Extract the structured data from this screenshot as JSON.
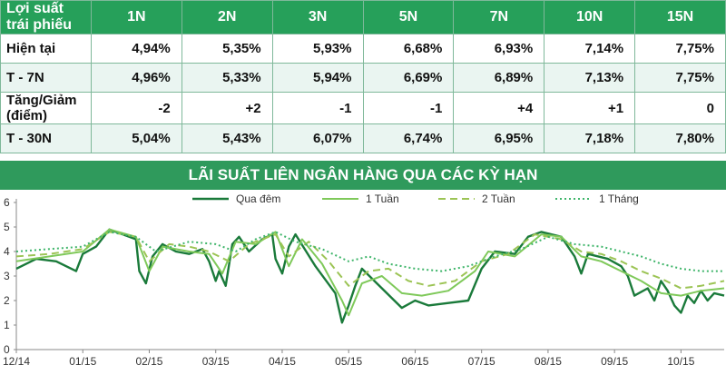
{
  "table": {
    "headers": [
      "Lợi suất trái phiếu",
      "1N",
      "2N",
      "3N",
      "5N",
      "7N",
      "10N",
      "15N"
    ],
    "rows": [
      {
        "label": "Hiện tại",
        "values": [
          "4,94%",
          "5,35%",
          "5,93%",
          "6,68%",
          "6,93%",
          "7,14%",
          "7,75%"
        ]
      },
      {
        "label": "T - 7N",
        "values": [
          "4,96%",
          "5,33%",
          "5,94%",
          "6,69%",
          "6,89%",
          "7,13%",
          "7,75%"
        ]
      },
      {
        "label": "Tăng/Giảm (điểm)",
        "values": [
          "-2",
          "+2",
          "-1",
          "-1",
          "+4",
          "+1",
          "0"
        ]
      },
      {
        "label": "T - 30N",
        "values": [
          "5,04%",
          "5,43%",
          "6,07%",
          "6,74%",
          "6,95%",
          "7,18%",
          "7,80%"
        ]
      }
    ]
  },
  "chart_data": {
    "type": "line",
    "title": "LÃI SUẤT LIÊN NGÂN HÀNG QUA CÁC KỲ HẠN",
    "ylim": [
      0,
      6
    ],
    "yticks": [
      0,
      1,
      2,
      3,
      4,
      5,
      6
    ],
    "xlim": [
      0,
      10.65
    ],
    "xticks": [
      0,
      1,
      2,
      3,
      4,
      5,
      6,
      7,
      8,
      9,
      10
    ],
    "xtick_labels": [
      "12/14",
      "01/15",
      "02/15",
      "03/15",
      "04/15",
      "05/15",
      "06/15",
      "07/15",
      "08/15",
      "09/15",
      "10/15"
    ],
    "legend_position": "top",
    "grid": false,
    "series": [
      {
        "name": "Qua đêm",
        "color": "#1a7a3a",
        "dash": "solid",
        "width": 2.4,
        "x": [
          0.0,
          0.3,
          0.6,
          0.9,
          1.0,
          1.2,
          1.4,
          1.6,
          1.8,
          1.85,
          1.95,
          2.05,
          2.2,
          2.4,
          2.6,
          2.8,
          2.9,
          3.0,
          3.05,
          3.15,
          3.25,
          3.35,
          3.5,
          3.7,
          3.85,
          3.9,
          4.0,
          4.1,
          4.2,
          4.5,
          4.8,
          4.9,
          5.0,
          5.1,
          5.2,
          5.5,
          5.8,
          6.0,
          6.2,
          6.5,
          6.8,
          7.0,
          7.2,
          7.5,
          7.7,
          7.9,
          8.2,
          8.4,
          8.5,
          8.6,
          8.9,
          9.1,
          9.2,
          9.3,
          9.5,
          9.6,
          9.7,
          9.8,
          9.9,
          10.0,
          10.1,
          10.2,
          10.3,
          10.4,
          10.5,
          10.65
        ],
        "y": [
          3.3,
          3.7,
          3.6,
          3.2,
          3.9,
          4.2,
          4.9,
          4.7,
          4.5,
          3.2,
          2.7,
          3.8,
          4.3,
          4.0,
          3.9,
          4.1,
          3.6,
          2.8,
          3.2,
          2.6,
          4.3,
          4.6,
          4.0,
          4.5,
          4.7,
          3.7,
          3.1,
          4.2,
          4.7,
          3.4,
          2.3,
          1.1,
          1.8,
          2.6,
          3.3,
          2.5,
          1.7,
          2.0,
          1.8,
          1.9,
          2.0,
          3.3,
          4.0,
          3.9,
          4.6,
          4.8,
          4.6,
          3.8,
          3.1,
          3.9,
          3.7,
          3.4,
          3.0,
          2.2,
          2.5,
          2.0,
          2.8,
          2.4,
          1.8,
          1.5,
          2.2,
          1.9,
          2.4,
          2.0,
          2.3,
          2.2
        ]
      },
      {
        "name": "1 Tuần",
        "color": "#7fc95a",
        "dash": "solid",
        "width": 2,
        "x": [
          0.0,
          0.5,
          1.0,
          1.4,
          1.8,
          2.0,
          2.2,
          2.6,
          2.9,
          3.1,
          3.3,
          3.6,
          3.9,
          4.1,
          4.3,
          4.6,
          4.9,
          5.0,
          5.2,
          5.5,
          5.8,
          6.1,
          6.5,
          6.9,
          7.1,
          7.5,
          7.9,
          8.2,
          8.5,
          8.8,
          9.1,
          9.4,
          9.7,
          10.0,
          10.3,
          10.65
        ],
        "y": [
          3.6,
          3.8,
          4.0,
          4.9,
          4.6,
          3.2,
          4.2,
          4.0,
          3.9,
          3.1,
          4.4,
          4.3,
          4.8,
          3.4,
          4.5,
          3.5,
          2.0,
          1.4,
          2.7,
          3.0,
          2.3,
          2.2,
          2.4,
          3.2,
          4.0,
          3.8,
          4.7,
          4.6,
          3.8,
          3.6,
          3.2,
          2.8,
          2.3,
          2.2,
          2.4,
          2.5
        ]
      },
      {
        "name": "2 Tuần",
        "color": "#9cc455",
        "dash": "8 5",
        "width": 2,
        "x": [
          0.0,
          0.5,
          1.0,
          1.4,
          1.8,
          2.0,
          2.3,
          2.6,
          2.9,
          3.2,
          3.5,
          3.9,
          4.1,
          4.4,
          4.7,
          5.0,
          5.3,
          5.6,
          5.9,
          6.2,
          6.6,
          7.0,
          7.4,
          7.8,
          8.2,
          8.5,
          8.8,
          9.1,
          9.4,
          9.7,
          10.0,
          10.3,
          10.65
        ],
        "y": [
          3.8,
          3.9,
          4.1,
          4.8,
          4.6,
          3.6,
          4.3,
          4.2,
          4.0,
          3.6,
          4.3,
          4.7,
          3.8,
          4.4,
          3.6,
          2.6,
          3.2,
          3.3,
          2.8,
          2.6,
          2.8,
          3.6,
          3.9,
          4.7,
          4.5,
          4.0,
          3.9,
          3.6,
          3.2,
          2.9,
          2.5,
          2.6,
          2.8
        ]
      },
      {
        "name": "1 Tháng",
        "color": "#3fb56a",
        "dash": "2 3",
        "width": 2,
        "x": [
          0.0,
          0.5,
          1.0,
          1.4,
          1.8,
          2.1,
          2.6,
          3.0,
          3.3,
          3.6,
          3.9,
          4.2,
          4.6,
          5.0,
          5.3,
          5.6,
          6.0,
          6.4,
          6.8,
          7.2,
          7.6,
          8.0,
          8.4,
          8.8,
          9.1,
          9.4,
          9.7,
          10.0,
          10.3,
          10.65
        ],
        "y": [
          4.0,
          4.1,
          4.2,
          4.8,
          4.6,
          4.0,
          4.4,
          4.3,
          4.0,
          4.5,
          4.8,
          4.4,
          4.1,
          3.6,
          3.8,
          3.5,
          3.3,
          3.2,
          3.4,
          3.8,
          4.1,
          4.6,
          4.3,
          4.2,
          4.0,
          3.8,
          3.5,
          3.3,
          3.2,
          3.2
        ]
      }
    ]
  }
}
